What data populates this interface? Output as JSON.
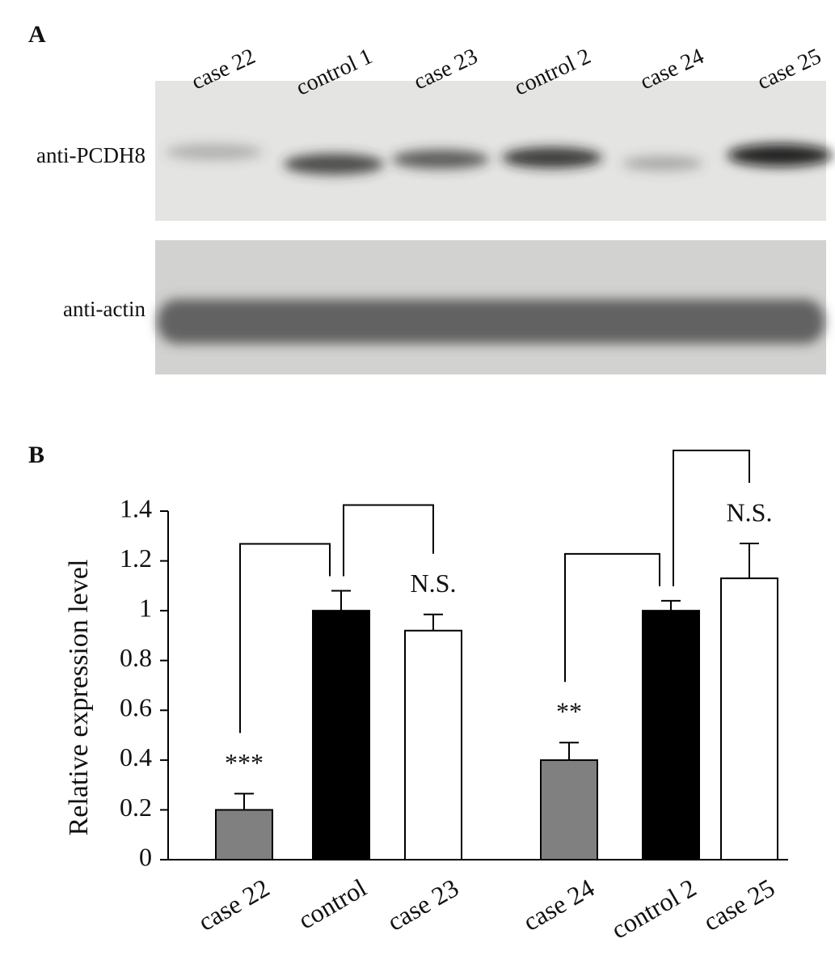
{
  "panel_a": {
    "label": "A",
    "lanes": [
      "case 22",
      "control 1",
      "case 23",
      "control 2",
      "case 24",
      "case 25"
    ],
    "rows": [
      "anti-PCDH8",
      "anti-actin"
    ]
  },
  "chart_data": {
    "type": "bar",
    "panel_label": "B",
    "y_label": "Relative expression level",
    "categories": [
      "case 22",
      "control",
      "case 23",
      "case 24",
      "control 2",
      "case 25"
    ],
    "values": [
      0.2,
      1.0,
      0.92,
      0.4,
      1.0,
      1.13
    ],
    "errors": [
      0.065,
      0.08,
      0.065,
      0.07,
      0.04,
      0.14
    ],
    "colors": [
      "#808080",
      "#000000",
      "#ffffff",
      "#808080",
      "#000000",
      "#ffffff"
    ],
    "annotations": [
      "***",
      null,
      "N.S.",
      "**",
      null,
      "N.S."
    ],
    "ylim": [
      0,
      1.4
    ],
    "yticks": [
      0,
      0.2,
      0.4,
      0.6,
      0.8,
      1,
      1.2,
      1.4
    ]
  }
}
